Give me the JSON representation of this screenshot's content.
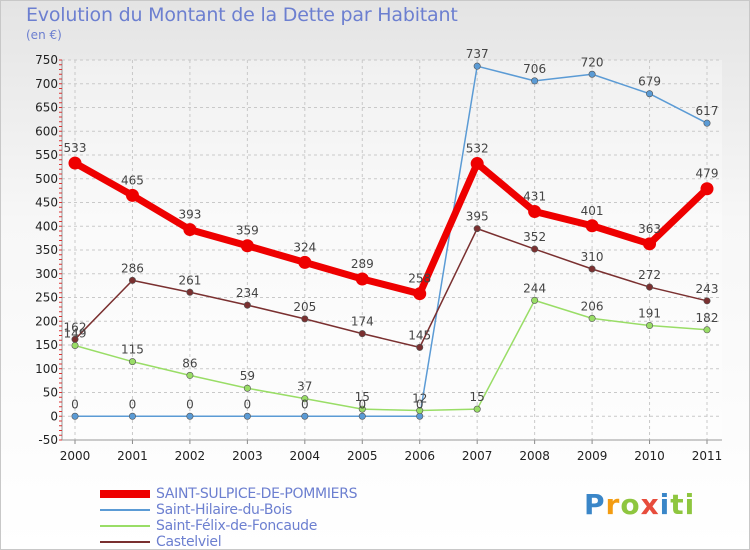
{
  "header": {
    "title": "Evolution du Montant de la Dette par Habitant",
    "unit": "(en €)"
  },
  "logo": {
    "text": "Proxiti",
    "letters": [
      "P",
      "r",
      "o",
      "x",
      "i",
      "ti"
    ]
  },
  "chart_data": {
    "type": "line",
    "title": "Evolution du Montant de la Dette par Habitant",
    "ylabel": "(en €)",
    "xlabel": "",
    "ylim": [
      -50,
      750
    ],
    "yticks": [
      -50,
      0,
      50,
      100,
      150,
      200,
      250,
      300,
      350,
      400,
      450,
      500,
      550,
      600,
      650,
      700,
      750
    ],
    "x": [
      "2000",
      "2001",
      "2002",
      "2003",
      "2004",
      "2005",
      "2006",
      "2007",
      "2008",
      "2009",
      "2010",
      "2011"
    ],
    "grid": true,
    "legend_position": "bottom-left",
    "series": [
      {
        "name": "SAINT-SULPICE-DE-POMMIERS",
        "color": "#ee0000",
        "emphasis": true,
        "values": [
          533,
          465,
          393,
          359,
          324,
          289,
          258,
          532,
          431,
          401,
          363,
          479
        ],
        "labels": [
          "533",
          "465",
          "393",
          "359",
          "324",
          "289",
          "258",
          "532",
          "431",
          "401",
          "363",
          "479"
        ]
      },
      {
        "name": "Saint-Hilaire-du-Bois",
        "color": "#5b9bd5",
        "values": [
          0,
          0,
          0,
          0,
          0,
          0,
          0,
          737,
          706,
          720,
          679,
          617
        ],
        "labels": [
          "0",
          "0",
          "0",
          "0",
          "0",
          "0",
          "0",
          "737",
          "706",
          "720",
          "679",
          "617"
        ]
      },
      {
        "name": "Saint-Félix-de-Foncaude",
        "color": "#99dd66",
        "values": [
          149,
          115,
          86,
          59,
          37,
          15,
          12,
          15,
          244,
          206,
          191,
          182
        ],
        "labels": [
          "149",
          "115",
          "86",
          "59",
          "37",
          "15",
          "12",
          "15",
          "244",
          "206",
          "191",
          "182"
        ]
      },
      {
        "name": "Castelviel",
        "color": "#7a3030",
        "values": [
          162,
          286,
          261,
          234,
          205,
          174,
          145,
          395,
          352,
          310,
          272,
          243
        ],
        "labels": [
          "162",
          "286",
          "261",
          "234",
          "205",
          "174",
          "145",
          "395",
          "352",
          "310",
          "272",
          "243"
        ]
      }
    ]
  }
}
